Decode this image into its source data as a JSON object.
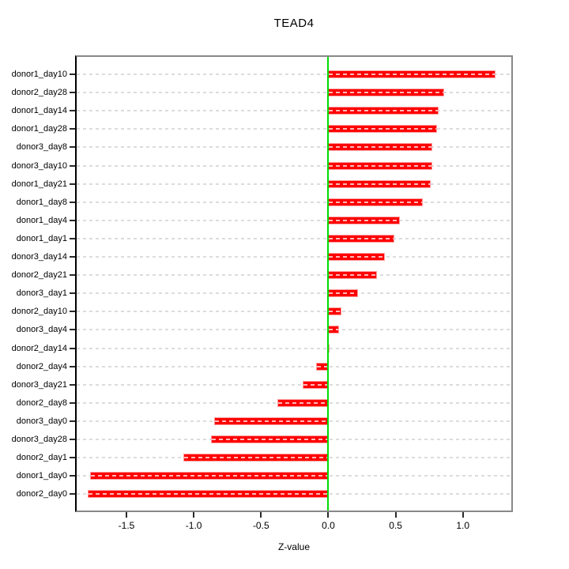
{
  "chart_data": {
    "type": "bar",
    "orientation": "horizontal",
    "title": "TEAD4",
    "xlabel": "Z-value",
    "ylabel": "",
    "categories": [
      "donor1_day10",
      "donor2_day28",
      "donor1_day14",
      "donor1_day28",
      "donor3_day8",
      "donor3_day10",
      "donor1_day21",
      "donor1_day8",
      "donor1_day4",
      "donor1_day1",
      "donor3_day14",
      "donor2_day21",
      "donor3_day1",
      "donor2_day10",
      "donor3_day4",
      "donor2_day14",
      "donor2_day4",
      "donor3_day21",
      "donor2_day8",
      "donor3_day0",
      "donor3_day28",
      "donor2_day1",
      "donor1_day0",
      "donor2_day0"
    ],
    "values": [
      1.24,
      0.86,
      0.82,
      0.81,
      0.77,
      0.77,
      0.76,
      0.7,
      0.53,
      0.49,
      0.42,
      0.36,
      0.22,
      0.1,
      0.08,
      0.0,
      -0.09,
      -0.19,
      -0.38,
      -0.85,
      -0.87,
      -1.08,
      -1.77,
      -1.79
    ],
    "xlim": [
      -1.87,
      1.36
    ],
    "xticks": [
      -1.5,
      -1.0,
      -0.5,
      0.0,
      0.5,
      1.0
    ],
    "xtick_labels": [
      "-1.5",
      "-1.0",
      "-0.5",
      "0.0",
      "0.5",
      "1.0"
    ],
    "zero_line_x": 0,
    "grid": "dashed-per-category",
    "legend_position": "none"
  },
  "colors": {
    "bar": "#fe0000",
    "bar_edge": "#ff9e9e",
    "zero_line": "#00dd00",
    "grid_line": "#dcdcdc",
    "box_border": "#888888",
    "axis_line": "#000000",
    "text": "#000000",
    "background": "#ffffff"
  }
}
